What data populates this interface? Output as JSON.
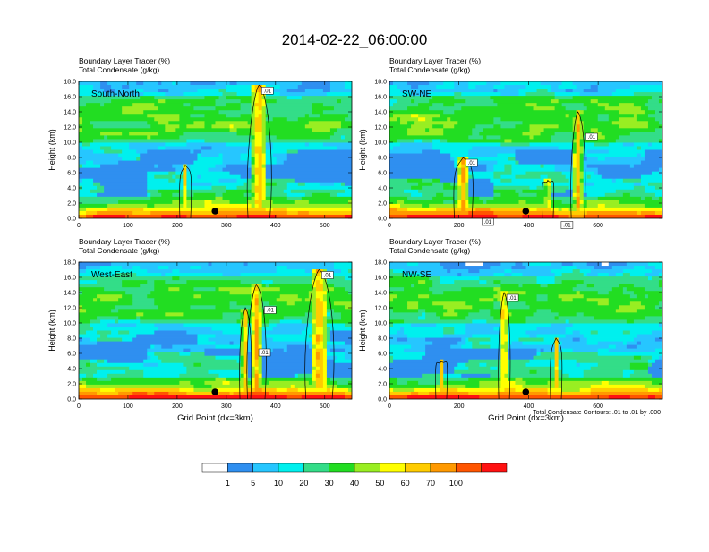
{
  "title": "2014-02-22_06:00:00",
  "contour_note": "Total Condensate Contours: .01 to .01 by .000",
  "colorbar": {
    "labels": [
      "1",
      "5",
      "10",
      "20",
      "30",
      "40",
      "50",
      "60",
      "70",
      "100"
    ],
    "colors": [
      "#ffffff",
      "#2f8ff0",
      "#26c6ff",
      "#00f0ee",
      "#33dd88",
      "#22dd22",
      "#99ee22",
      "#ffff00",
      "#ffcc00",
      "#ff9900",
      "#ff5500",
      "#ff1111"
    ]
  },
  "chart_data": [
    {
      "type": "heatmap",
      "panel_label": "South-North",
      "title_line1": "Boundary Layer Tracer   (%)",
      "title_line2": "Total Condensate   (g/kg)",
      "ylabel": "Height (km)",
      "xlabel": "",
      "xlim": [
        0,
        555
      ],
      "ylim": [
        0,
        18
      ],
      "xticks": [
        "0",
        "100",
        "200",
        "300",
        "400",
        "500"
      ],
      "yticks": [
        "0.0",
        "2.0",
        "4.0",
        "6.0",
        "8.0",
        "10.0",
        "12.0",
        "14.0",
        "16.0",
        "18.0"
      ],
      "contour_labels": [
        ".01"
      ],
      "marker_x": 277
    },
    {
      "type": "heatmap",
      "panel_label": "SW-NE",
      "title_line1": "Boundary Layer Tracer   (%)",
      "title_line2": "Total Condensate   (g/kg)",
      "ylabel": "Height (km)",
      "xlabel": "",
      "xlim": [
        0,
        785
      ],
      "ylim": [
        0,
        18
      ],
      "xticks": [
        "0",
        "200",
        "400",
        "600"
      ],
      "yticks": [
        "0.0",
        "2.0",
        "4.0",
        "6.0",
        "8.0",
        "10.0",
        "12.0",
        "14.0",
        "16.0",
        "18.0"
      ],
      "contour_labels": [
        ".01",
        ".01",
        ".01",
        ".01"
      ],
      "marker_x": 392
    },
    {
      "type": "heatmap",
      "panel_label": "West-East",
      "title_line1": "Boundary Layer Tracer   (%)",
      "title_line2": "Total Condensate   (g/kg)",
      "ylabel": "Height (km)",
      "xlabel": "Grid Point (dx=3km)",
      "xlim": [
        0,
        555
      ],
      "ylim": [
        0,
        18
      ],
      "xticks": [
        "0",
        "100",
        "200",
        "300",
        "400",
        "500"
      ],
      "yticks": [
        "0.0",
        "2.0",
        "4.0",
        "6.0",
        "8.0",
        "10.0",
        "12.0",
        "14.0",
        "16.0",
        "18.0"
      ],
      "contour_labels": [
        ".01",
        ".01",
        ".01"
      ],
      "marker_x": 277
    },
    {
      "type": "heatmap",
      "panel_label": "NW-SE",
      "title_line1": "Boundary Layer Tracer   (%)",
      "title_line2": "Total Condensate   (g/kg)",
      "ylabel": "Height (km)",
      "xlabel": "Grid Point (dx=3km)",
      "xlim": [
        0,
        785
      ],
      "ylim": [
        0,
        18
      ],
      "xticks": [
        "0",
        "200",
        "400",
        "600"
      ],
      "yticks": [
        "0.0",
        "2.0",
        "4.0",
        "6.0",
        "8.0",
        "10.0",
        "12.0",
        "14.0",
        "16.0",
        "18.0"
      ],
      "contour_labels": [
        ".01"
      ],
      "marker_x": 392
    }
  ]
}
